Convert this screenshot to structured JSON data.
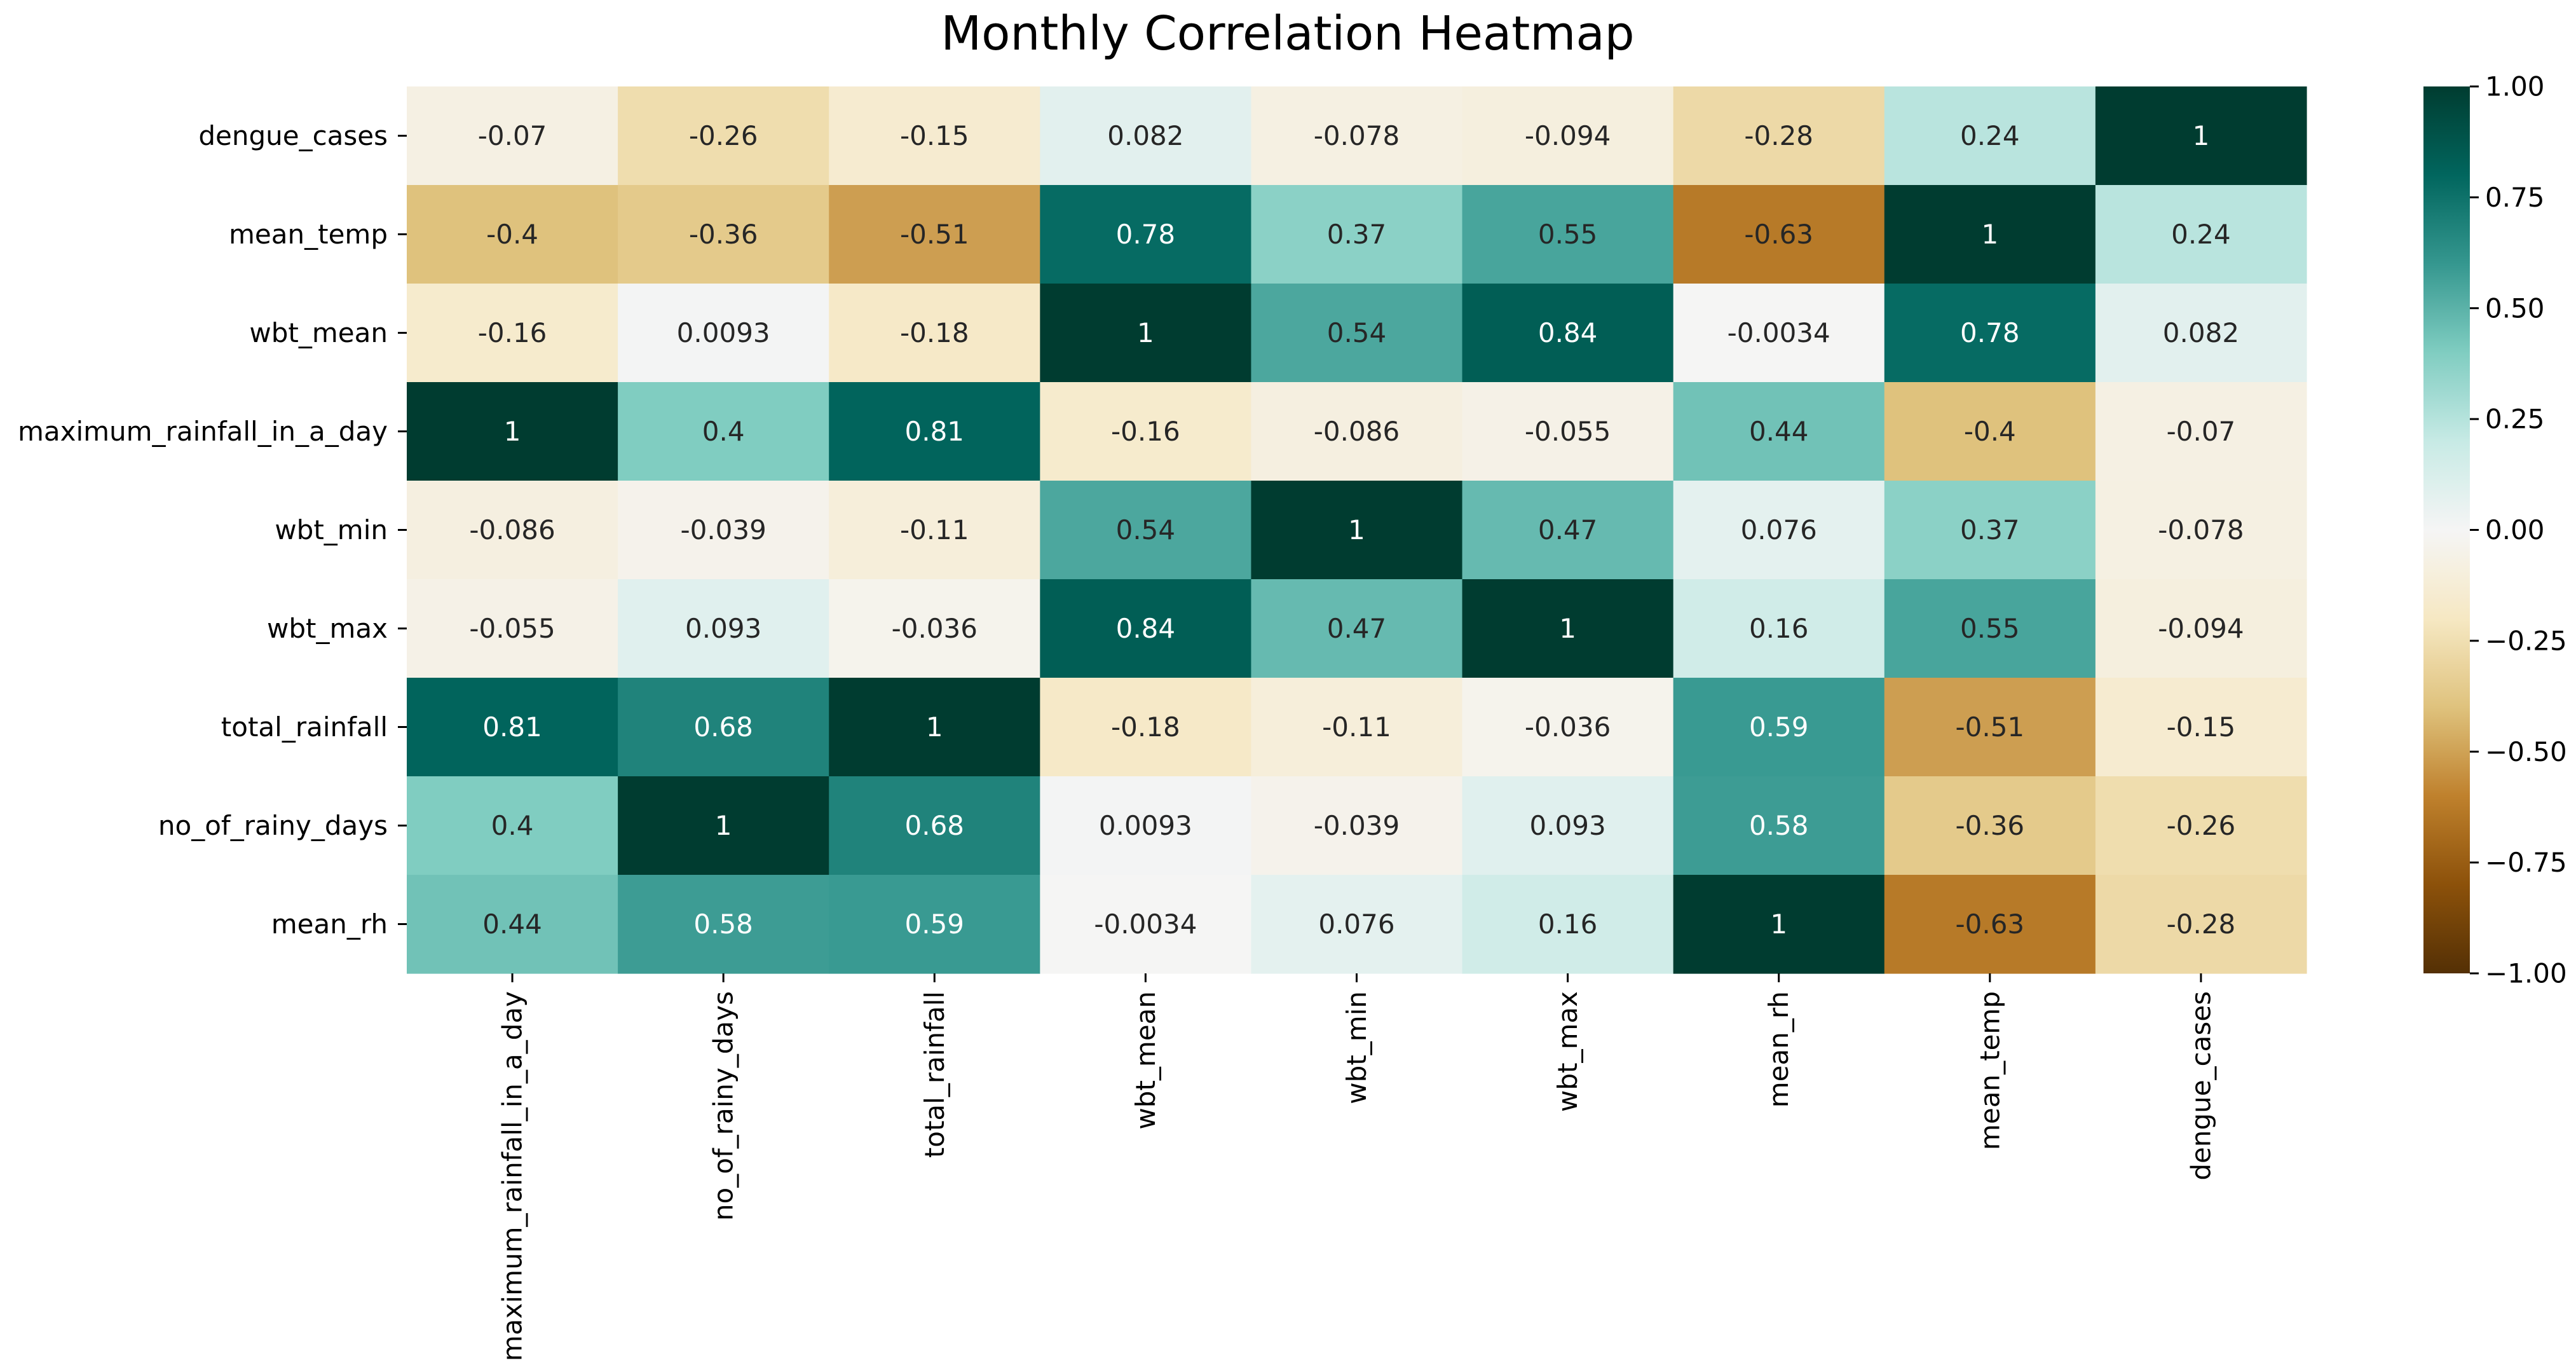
{
  "chart_data": {
    "type": "heatmap",
    "title": "Monthly Correlation Heatmap",
    "rows": [
      "dengue_cases",
      "mean_temp",
      "wbt_mean",
      "maximum_rainfall_in_a_day",
      "wbt_min",
      "wbt_max",
      "total_rainfall",
      "no_of_rainy_days",
      "mean_rh"
    ],
    "columns": [
      "maximum_rainfall_in_a_day",
      "no_of_rainy_days",
      "total_rainfall",
      "wbt_mean",
      "wbt_min",
      "wbt_max",
      "mean_rh",
      "mean_temp",
      "dengue_cases"
    ],
    "values": [
      [
        -0.07,
        -0.26,
        -0.15,
        0.082,
        -0.078,
        -0.094,
        -0.28,
        0.24,
        1
      ],
      [
        -0.4,
        -0.36,
        -0.51,
        0.78,
        0.37,
        0.55,
        -0.63,
        1,
        0.24
      ],
      [
        -0.16,
        0.0093,
        -0.18,
        1,
        0.54,
        0.84,
        -0.0034,
        0.78,
        0.082
      ],
      [
        1,
        0.4,
        0.81,
        -0.16,
        -0.086,
        -0.055,
        0.44,
        -0.4,
        -0.07
      ],
      [
        -0.086,
        -0.039,
        -0.11,
        0.54,
        1,
        0.47,
        0.076,
        0.37,
        -0.078
      ],
      [
        -0.055,
        0.093,
        -0.036,
        0.84,
        0.47,
        1,
        0.16,
        0.55,
        -0.094
      ],
      [
        0.81,
        0.68,
        1,
        -0.18,
        -0.11,
        -0.036,
        0.59,
        -0.51,
        -0.15
      ],
      [
        0.4,
        1,
        0.68,
        0.0093,
        -0.039,
        0.093,
        0.58,
        -0.36,
        -0.26
      ],
      [
        0.44,
        0.58,
        0.59,
        -0.0034,
        0.076,
        0.16,
        1,
        -0.63,
        -0.28
      ]
    ],
    "labels": [
      [
        "-0.07",
        "-0.26",
        "-0.15",
        "0.082",
        "-0.078",
        "-0.094",
        "-0.28",
        "0.24",
        "1"
      ],
      [
        "-0.4",
        "-0.36",
        "-0.51",
        "0.78",
        "0.37",
        "0.55",
        "-0.63",
        "1",
        "0.24"
      ],
      [
        "-0.16",
        "0.0093",
        "-0.18",
        "1",
        "0.54",
        "0.84",
        "-0.0034",
        "0.78",
        "0.082"
      ],
      [
        "1",
        "0.4",
        "0.81",
        "-0.16",
        "-0.086",
        "-0.055",
        "0.44",
        "-0.4",
        "-0.07"
      ],
      [
        "-0.086",
        "-0.039",
        "-0.11",
        "0.54",
        "1",
        "0.47",
        "0.076",
        "0.37",
        "-0.078"
      ],
      [
        "-0.055",
        "0.093",
        "-0.036",
        "0.84",
        "0.47",
        "1",
        "0.16",
        "0.55",
        "-0.094"
      ],
      [
        "0.81",
        "0.68",
        "1",
        "-0.18",
        "-0.11",
        "-0.036",
        "0.59",
        "-0.51",
        "-0.15"
      ],
      [
        "0.4",
        "1",
        "0.68",
        "0.0093",
        "-0.039",
        "0.093",
        "0.58",
        "-0.36",
        "-0.26"
      ],
      [
        "0.44",
        "0.58",
        "0.59",
        "-0.0034",
        "0.076",
        "0.16",
        "1",
        "-0.63",
        "-0.28"
      ]
    ],
    "colormap": "BrBG",
    "vmin": -1,
    "vmax": 1,
    "colorbar_ticks": [
      1.0,
      0.75,
      0.5,
      0.25,
      0.0,
      -0.25,
      -0.5,
      -0.75,
      -1.0
    ],
    "colorbar_tick_labels": [
      "1.00",
      "0.75",
      "0.50",
      "0.25",
      "0.00",
      "−0.25",
      "−0.50",
      "−0.75",
      "−1.00"
    ],
    "xlabel": "",
    "ylabel": ""
  }
}
